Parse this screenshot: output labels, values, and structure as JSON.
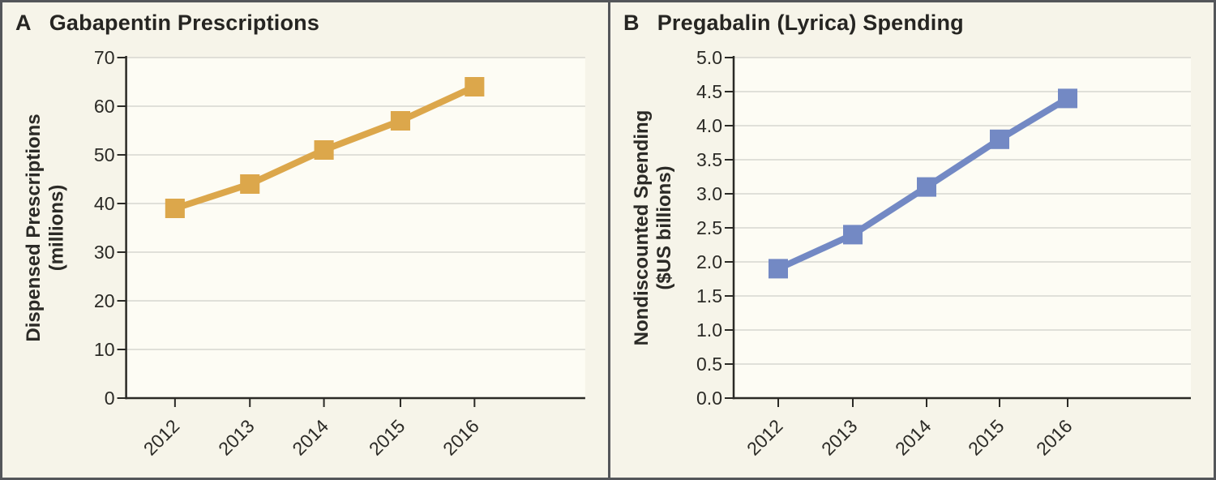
{
  "figure": {
    "background": "#f6f4e9",
    "plot_background": "#fdfcf4",
    "border_color": "#54565a",
    "grid_color": "#d7d6d0",
    "axis_color": "#2b2a26",
    "text_color": "#2b2a26"
  },
  "chart_data": [
    {
      "type": "line",
      "panel_label": "A",
      "title": "Gabapentin Prescriptions",
      "ylabel_lines": [
        "Dispensed Prescriptions",
        "(millions)"
      ],
      "categories": [
        "2012",
        "2013",
        "2014",
        "2015",
        "2016"
      ],
      "values": [
        39,
        44,
        51,
        57,
        64
      ],
      "ylim": [
        0,
        70
      ],
      "ytick_values": [
        0,
        10,
        20,
        30,
        40,
        50,
        60,
        70
      ],
      "ytick_labels": [
        "0",
        "10",
        "20",
        "30",
        "40",
        "50",
        "60",
        "70"
      ],
      "grid": true,
      "legend": "none",
      "marker": "square",
      "series_color": "#dca74b"
    },
    {
      "type": "line",
      "panel_label": "B",
      "title": "Pregabalin (Lyrica) Spending",
      "ylabel_lines": [
        "Nondiscounted Spending",
        "($US billions)"
      ],
      "categories": [
        "2012",
        "2013",
        "2014",
        "2015",
        "2016"
      ],
      "values": [
        1.9,
        2.4,
        3.1,
        3.8,
        4.4
      ],
      "ylim": [
        0,
        5
      ],
      "ytick_values": [
        0,
        0.5,
        1,
        1.5,
        2,
        2.5,
        3,
        3.5,
        4,
        4.5,
        5
      ],
      "ytick_labels": [
        "0.0",
        "0.5",
        "1.0",
        "1.5",
        "2.0",
        "2.5",
        "3.0",
        "3.5",
        "4.0",
        "4.5",
        "5.0"
      ],
      "grid": true,
      "legend": "none",
      "marker": "square",
      "series_color": "#7389c4"
    }
  ]
}
